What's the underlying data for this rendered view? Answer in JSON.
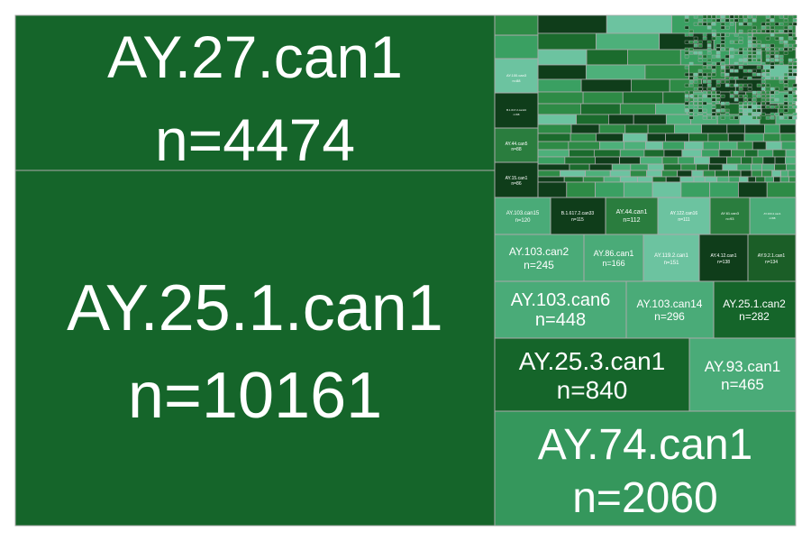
{
  "chart_data": {
    "type": "treemap",
    "title": "",
    "palette": [
      "#0f3d1a",
      "#1b6b2d",
      "#2e8b46",
      "#3aa062",
      "#4db07a",
      "#6cc3a0"
    ],
    "labeled_cells": [
      {
        "name": "AY.25.1.can1",
        "n_label": "n=10161",
        "value": 10161,
        "color": "#15652a"
      },
      {
        "name": "AY.27.can1",
        "n_label": "n=4474",
        "value": 4474,
        "color": "#15652a"
      },
      {
        "name": "AY.74.can1",
        "n_label": "n=2060",
        "value": 2060,
        "color": "#35975c"
      },
      {
        "name": "AY.25.3.can1",
        "n_label": "n=840",
        "value": 840,
        "color": "#15652a"
      },
      {
        "name": "AY.93.can1",
        "n_label": "n=465",
        "value": 465,
        "color": "#4aab78"
      },
      {
        "name": "AY.103.can6",
        "n_label": "n=448",
        "value": 448,
        "color": "#4aab78"
      },
      {
        "name": "AY.103.can14",
        "n_label": "n=296",
        "value": 296,
        "color": "#4aab78"
      },
      {
        "name": "AY.25.1.can2",
        "n_label": "n=282",
        "value": 282,
        "color": "#15652a"
      },
      {
        "name": "AY.103.can2",
        "n_label": "n=245",
        "value": 245,
        "color": "#4aab78"
      },
      {
        "name": "AY.86.can1",
        "n_label": "n=166",
        "value": 166,
        "color": "#4aab78"
      },
      {
        "name": "AY.119.2.can1",
        "n_label": "n=151",
        "value": 151,
        "color": "#6cc3a0"
      },
      {
        "name": "AY.4.12.can1",
        "n_label": "n=138",
        "value": 138,
        "color": "#0f3d1a"
      },
      {
        "name": "AY.9.2.1.can1",
        "n_label": "n=134",
        "value": 134,
        "color": "#1b5e27"
      },
      {
        "name": "AY.103.can15",
        "n_label": "n=120",
        "value": 120,
        "color": "#4aab78"
      },
      {
        "name": "B.1.617.2.can33",
        "n_label": "n=115",
        "value": 115,
        "color": "#0f3d1a"
      },
      {
        "name": "AY.44.can1",
        "n_label": "n=112",
        "value": 112,
        "color": "#2a7d3e"
      },
      {
        "name": "AY.122.can16",
        "n_label": "n=111",
        "value": 111,
        "color": "#6cc3a0"
      },
      {
        "name": "AY.61.can3",
        "n_label": "n=93",
        "value": 93,
        "color": "#2a7d3e"
      },
      {
        "name": "AY.103.2.can1",
        "n_label": "n=88",
        "value": 88,
        "color": "#4aab78"
      },
      {
        "name": "AY.100.can3",
        "n_label": "n=88",
        "value": 88,
        "color": "#6cc3a0"
      },
      {
        "name": "B.1.617.2.can24",
        "n_label": "n=88",
        "value": 88,
        "color": "#0f3d1a"
      },
      {
        "name": "AY.44.can5",
        "n_label": "n=88",
        "value": 88,
        "color": "#2a7d3e"
      },
      {
        "name": "AY.15.can1",
        "n_label": "n=86",
        "value": 86,
        "color": "#0f3d1a"
      }
    ]
  }
}
